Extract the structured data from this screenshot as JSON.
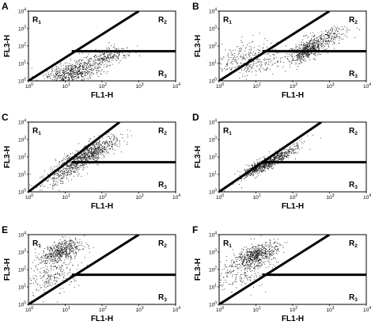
{
  "figure": {
    "colors": {
      "axes": "#000000",
      "dots": "#1a1a1a",
      "gate": "#000000",
      "background": "#ffffff"
    }
  },
  "chart_data": [
    {
      "panel": "A",
      "type": "scatter",
      "xlabel": "FL1-H",
      "ylabel": "FL3-H",
      "xscale": "log",
      "yscale": "log",
      "xlim": [
        1,
        10000
      ],
      "ylim": [
        1,
        10000
      ],
      "xticks": [
        "10",
        "10",
        "10",
        "10",
        "10"
      ],
      "xtick_exponents": [
        "0",
        "1",
        "2",
        "3",
        "4"
      ],
      "yticks": [
        "10",
        "10",
        "10",
        "10",
        "10"
      ],
      "ytick_exponents": [
        "0",
        "1",
        "2",
        "3",
        "4"
      ],
      "regions": [
        {
          "label": "R",
          "sub": "1",
          "pos": "top-left"
        },
        {
          "label": "R",
          "sub": "2",
          "pos": "top-right"
        },
        {
          "label": "R",
          "sub": "3",
          "pos": "bottom-right"
        }
      ],
      "gate": {
        "diagonal": [
          [
            1,
            1
          ],
          [
            1000,
            10000
          ]
        ],
        "horizontal": {
          "y": 50,
          "x_from": 15,
          "x_to": 10000
        }
      },
      "clusters": [
        {
          "cx": 15,
          "cy": 3,
          "sx": 0.42,
          "sy": 0.32,
          "n": 700,
          "tilt": 0.55
        },
        {
          "cx": 130,
          "cy": 25,
          "sx": 0.3,
          "sy": 0.25,
          "n": 250,
          "tilt": 0.5
        }
      ]
    },
    {
      "panel": "B",
      "type": "scatter",
      "xlabel": "FL1-H",
      "ylabel": "FL3-H",
      "xscale": "log",
      "yscale": "log",
      "xlim": [
        1,
        10000
      ],
      "ylim": [
        1,
        10000
      ],
      "xticks": [
        "10",
        "10",
        "10",
        "10",
        "10"
      ],
      "xtick_exponents": [
        "0",
        "1",
        "2",
        "3",
        "4"
      ],
      "yticks": [
        "10",
        "10",
        "10",
        "10",
        "10"
      ],
      "ytick_exponents": [
        "0",
        "1",
        "2",
        "3",
        "4"
      ],
      "regions": [
        {
          "label": "R",
          "sub": "1",
          "pos": "top-left"
        },
        {
          "label": "R",
          "sub": "2",
          "pos": "top-right"
        },
        {
          "label": "R",
          "sub": "3",
          "pos": "bottom-right"
        }
      ],
      "gate": {
        "diagonal": [
          [
            1,
            1
          ],
          [
            1000,
            10000
          ]
        ],
        "horizontal": {
          "y": 50,
          "x_from": 15,
          "x_to": 10000
        }
      },
      "clusters": [
        {
          "cx": 250,
          "cy": 60,
          "sx": 0.25,
          "sy": 0.3,
          "n": 550,
          "tilt": 0.9
        },
        {
          "cx": 900,
          "cy": 300,
          "sx": 0.25,
          "sy": 0.25,
          "n": 200,
          "tilt": 0.9
        },
        {
          "cx": 6,
          "cy": 15,
          "sx": 0.45,
          "sy": 0.45,
          "n": 350,
          "tilt": 0.2
        }
      ]
    },
    {
      "panel": "C",
      "type": "scatter",
      "xlabel": "FL1-H",
      "ylabel": "FL3-H",
      "xscale": "log",
      "yscale": "log",
      "xlim": [
        1,
        10000
      ],
      "ylim": [
        1,
        10000
      ],
      "xticks": [
        "10",
        "10",
        "10",
        "10",
        "10"
      ],
      "xtick_exponents": [
        "0",
        "1",
        "2",
        "3",
        "4"
      ],
      "yticks": [
        "10",
        "10",
        "10",
        "10",
        "10"
      ],
      "ytick_exponents": [
        "0",
        "1",
        "2",
        "3",
        "4"
      ],
      "regions": [
        {
          "label": "R",
          "sub": "1",
          "pos": "top-left"
        },
        {
          "label": "R",
          "sub": "2",
          "pos": "top-right"
        },
        {
          "label": "R",
          "sub": "3",
          "pos": "bottom-right"
        }
      ],
      "gate": {
        "diagonal": [
          [
            1,
            1
          ],
          [
            300,
            10000
          ]
        ],
        "horizontal": {
          "y": 50,
          "x_from": 15,
          "x_to": 10000
        }
      },
      "clusters": [
        {
          "cx": 35,
          "cy": 120,
          "sx": 0.45,
          "sy": 0.3,
          "n": 900,
          "tilt": 1.05
        },
        {
          "cx": 8,
          "cy": 8,
          "sx": 0.3,
          "sy": 0.3,
          "n": 150,
          "tilt": 1.0
        }
      ]
    },
    {
      "panel": "D",
      "type": "scatter",
      "xlabel": "FL1-H",
      "ylabel": "FL3-H",
      "xscale": "log",
      "yscale": "log",
      "xlim": [
        1,
        10000
      ],
      "ylim": [
        1,
        10000
      ],
      "xticks": [
        "10",
        "10",
        "10",
        "10",
        "10"
      ],
      "xtick_exponents": [
        "0",
        "1",
        "2",
        "3",
        "4"
      ],
      "yticks": [
        "10",
        "10",
        "10",
        "10",
        "10"
      ],
      "ytick_exponents": [
        "0",
        "1",
        "2",
        "3",
        "4"
      ],
      "regions": [
        {
          "label": "R",
          "sub": "1",
          "pos": "top-left"
        },
        {
          "label": "R",
          "sub": "2",
          "pos": "top-right"
        },
        {
          "label": "R",
          "sub": "3",
          "pos": "bottom-right"
        }
      ],
      "gate": {
        "diagonal": [
          [
            1,
            1
          ],
          [
            600,
            10000
          ]
        ],
        "horizontal": {
          "y": 50,
          "x_from": 15,
          "x_to": 10000
        }
      },
      "clusters": [
        {
          "cx": 25,
          "cy": 60,
          "sx": 0.35,
          "sy": 0.2,
          "n": 700,
          "tilt": 1.1
        },
        {
          "cx": 10,
          "cy": 25,
          "sx": 0.12,
          "sy": 0.12,
          "n": 150,
          "tilt": 1.0
        }
      ]
    },
    {
      "panel": "E",
      "type": "scatter",
      "xlabel": "FL1-H",
      "ylabel": "FL3-H",
      "xscale": "log",
      "yscale": "log",
      "xlim": [
        1,
        10000
      ],
      "ylim": [
        1,
        10000
      ],
      "xticks": [
        "10",
        "10",
        "10",
        "10",
        "10"
      ],
      "xtick_exponents": [
        "0",
        "1",
        "2",
        "3",
        "4"
      ],
      "yticks": [
        "10",
        "10",
        "10",
        "10",
        "10"
      ],
      "ytick_exponents": [
        "0",
        "1",
        "2",
        "3",
        "4"
      ],
      "regions": [
        {
          "label": "R",
          "sub": "1",
          "pos": "top-left"
        },
        {
          "label": "R",
          "sub": "2",
          "pos": "top-right"
        },
        {
          "label": "R",
          "sub": "3",
          "pos": "bottom-right"
        }
      ],
      "gate": {
        "diagonal": [
          [
            1,
            1
          ],
          [
            1000,
            10000
          ]
        ],
        "horizontal": {
          "y": 50,
          "x_from": 15,
          "x_to": 10000
        }
      },
      "clusters": [
        {
          "cx": 8,
          "cy": 1200,
          "sx": 0.28,
          "sy": 0.28,
          "n": 550,
          "tilt": 0.6
        },
        {
          "cx": 4,
          "cy": 40,
          "sx": 0.4,
          "sy": 0.5,
          "n": 250,
          "tilt": 0.5
        }
      ]
    },
    {
      "panel": "F",
      "type": "scatter",
      "xlabel": "FL1-H",
      "ylabel": "FL3-H",
      "xscale": "log",
      "yscale": "log",
      "xlim": [
        1,
        10000
      ],
      "ylim": [
        1,
        10000
      ],
      "xticks": [
        "10",
        "10",
        "10",
        "10",
        "10"
      ],
      "xtick_exponents": [
        "0",
        "1",
        "2",
        "3",
        "4"
      ],
      "yticks": [
        "10",
        "10",
        "10",
        "10",
        "10"
      ],
      "ytick_exponents": [
        "0",
        "1",
        "2",
        "3",
        "4"
      ],
      "regions": [
        {
          "label": "R",
          "sub": "1",
          "pos": "top-left"
        },
        {
          "label": "R",
          "sub": "2",
          "pos": "top-right"
        },
        {
          "label": "R",
          "sub": "3",
          "pos": "bottom-right"
        }
      ],
      "gate": {
        "diagonal": [
          [
            1,
            1
          ],
          [
            1000,
            10000
          ]
        ],
        "horizontal": {
          "y": 50,
          "x_from": 15,
          "x_to": 10000
        }
      },
      "clusters": [
        {
          "cx": 10,
          "cy": 700,
          "sx": 0.3,
          "sy": 0.3,
          "n": 650,
          "tilt": 0.6
        },
        {
          "cx": 4,
          "cy": 60,
          "sx": 0.4,
          "sy": 0.45,
          "n": 200,
          "tilt": 0.5
        }
      ]
    }
  ]
}
